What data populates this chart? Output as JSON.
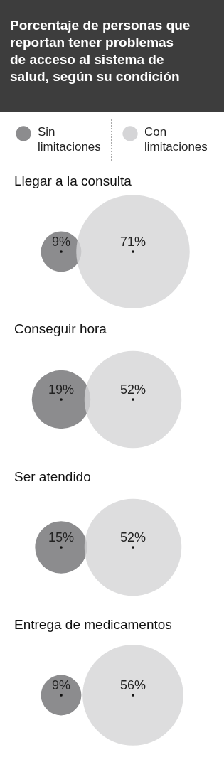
{
  "chart_data": [
    {
      "type": "other",
      "title": "Porcentaje de personas que reportan tener problemas de acceso al sistema de salud, según su condición",
      "subtitle": "Llegar a la consulta",
      "categories": [
        "Sin limitaciones",
        "Con limitaciones"
      ],
      "colors": [
        "#8c8c8e",
        "#d5d5d7"
      ],
      "values": [
        9,
        71
      ],
      "value_labels": [
        "9%",
        "71%"
      ]
    },
    {
      "type": "other",
      "title": "Conseguir hora",
      "colors": [
        "#8c8c8e",
        "#d5d5d7"
      ],
      "values": [
        19,
        52
      ],
      "value_labels": [
        "19%",
        "52%"
      ]
    },
    {
      "type": "other",
      "title": "Ser atendido",
      "colors": [
        "#8c8c8e",
        "#d5d5d7"
      ],
      "values": [
        15,
        52
      ],
      "value_labels": [
        "15%",
        "52%"
      ]
    },
    {
      "type": "other",
      "title": "Entrega de medicamentos",
      "colors": [
        "#8c8c8e",
        "#d5d5d7"
      ],
      "values": [
        9,
        56
      ],
      "value_labels": [
        "9%",
        "56%"
      ]
    }
  ]
}
